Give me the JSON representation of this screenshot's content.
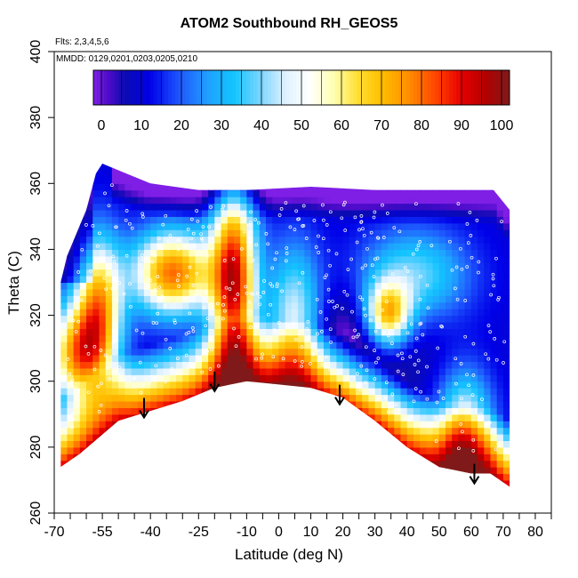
{
  "header": {
    "title": "ATOM2 Southbound RH_GEOS5",
    "flights_note": "Flts: 2,3,4,5,6",
    "dates_note": "MMDD: 0129,0201,0203,0205,0210"
  },
  "chart_data": {
    "type": "heatmap",
    "title": "ATOM2 Southbound RH_GEOS5",
    "xlabel": "Latitude (deg N)",
    "ylabel": "Theta (C)",
    "xlim": [
      -70,
      85
    ],
    "ylim": [
      260,
      400
    ],
    "x_ticks": [
      -70,
      -55,
      -40,
      -25,
      -10,
      0,
      10,
      20,
      30,
      40,
      50,
      60,
      70,
      80
    ],
    "y_ticks": [
      260,
      280,
      300,
      320,
      340,
      360,
      380,
      400
    ],
    "colorbar": {
      "label_values": [
        0,
        10,
        20,
        30,
        40,
        50,
        60,
        70,
        80,
        90,
        100
      ],
      "range": [
        -2,
        102
      ],
      "stops": [
        {
          "v": -2,
          "c": "#7f1fe6"
        },
        {
          "v": 2,
          "c": "#4a0bc8"
        },
        {
          "v": 6,
          "c": "#0b0bb3"
        },
        {
          "v": 12,
          "c": "#0000e8"
        },
        {
          "v": 20,
          "c": "#1f5cff"
        },
        {
          "v": 27,
          "c": "#1fa3ff"
        },
        {
          "v": 33,
          "c": "#13c4ff"
        },
        {
          "v": 40,
          "c": "#7fd6ff"
        },
        {
          "v": 46,
          "c": "#dff2ff"
        },
        {
          "v": 52,
          "c": "#ffffff"
        },
        {
          "v": 58,
          "c": "#ffffb3"
        },
        {
          "v": 64,
          "c": "#ffdf33"
        },
        {
          "v": 70,
          "c": "#ffbf00"
        },
        {
          "v": 77,
          "c": "#ff8c00"
        },
        {
          "v": 84,
          "c": "#ff4000"
        },
        {
          "v": 90,
          "c": "#e60000"
        },
        {
          "v": 96,
          "c": "#b30000"
        },
        {
          "v": 102,
          "c": "#801a1a"
        }
      ]
    },
    "arrows": [
      {
        "lat": -42,
        "theta": 289
      },
      {
        "lat": -20,
        "theta": 297
      },
      {
        "lat": 19,
        "theta": 293
      },
      {
        "lat": 61,
        "theta": 269
      }
    ]
  }
}
